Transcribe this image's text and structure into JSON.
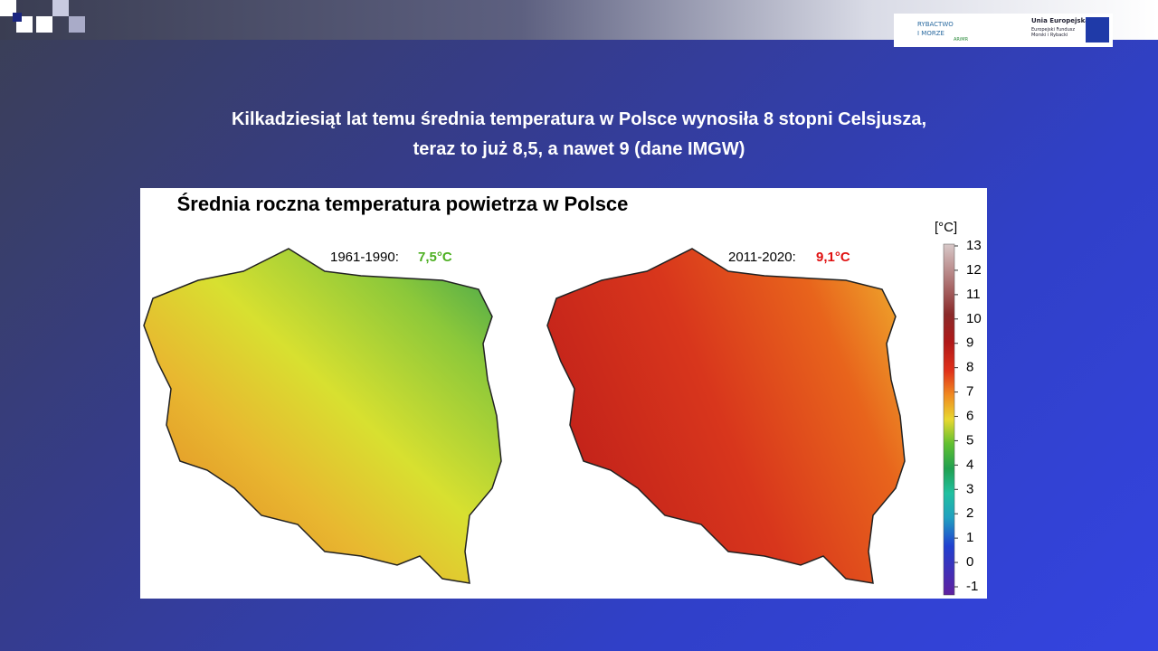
{
  "header": {
    "logos": [
      "RYBACTWO",
      "I MORZE",
      "ARiMR",
      "Unia Europejska",
      "Europejski Fundusz Morski i Rybacki"
    ]
  },
  "slide": {
    "title_lines": [
      "Kilkadziesiąt lat temu średnia temperatura w Polsce wynosiła 8 stopni Celsjusza,",
      "teraz to już 8,5, a nawet 9 (dane IMGW)"
    ]
  },
  "figure": {
    "title": "Średnia roczna temperatura powietrza w Polsce",
    "maps": [
      {
        "period": "1961-1990:",
        "mean": "7,5°C"
      },
      {
        "period": "2011-2020:",
        "mean": "9,1°C"
      }
    ],
    "colorbar": {
      "unit": "[°C]",
      "ticks": [
        13,
        12,
        11,
        10,
        9,
        8,
        7,
        6,
        5,
        4,
        3,
        2,
        1,
        0,
        -1
      ]
    }
  }
}
